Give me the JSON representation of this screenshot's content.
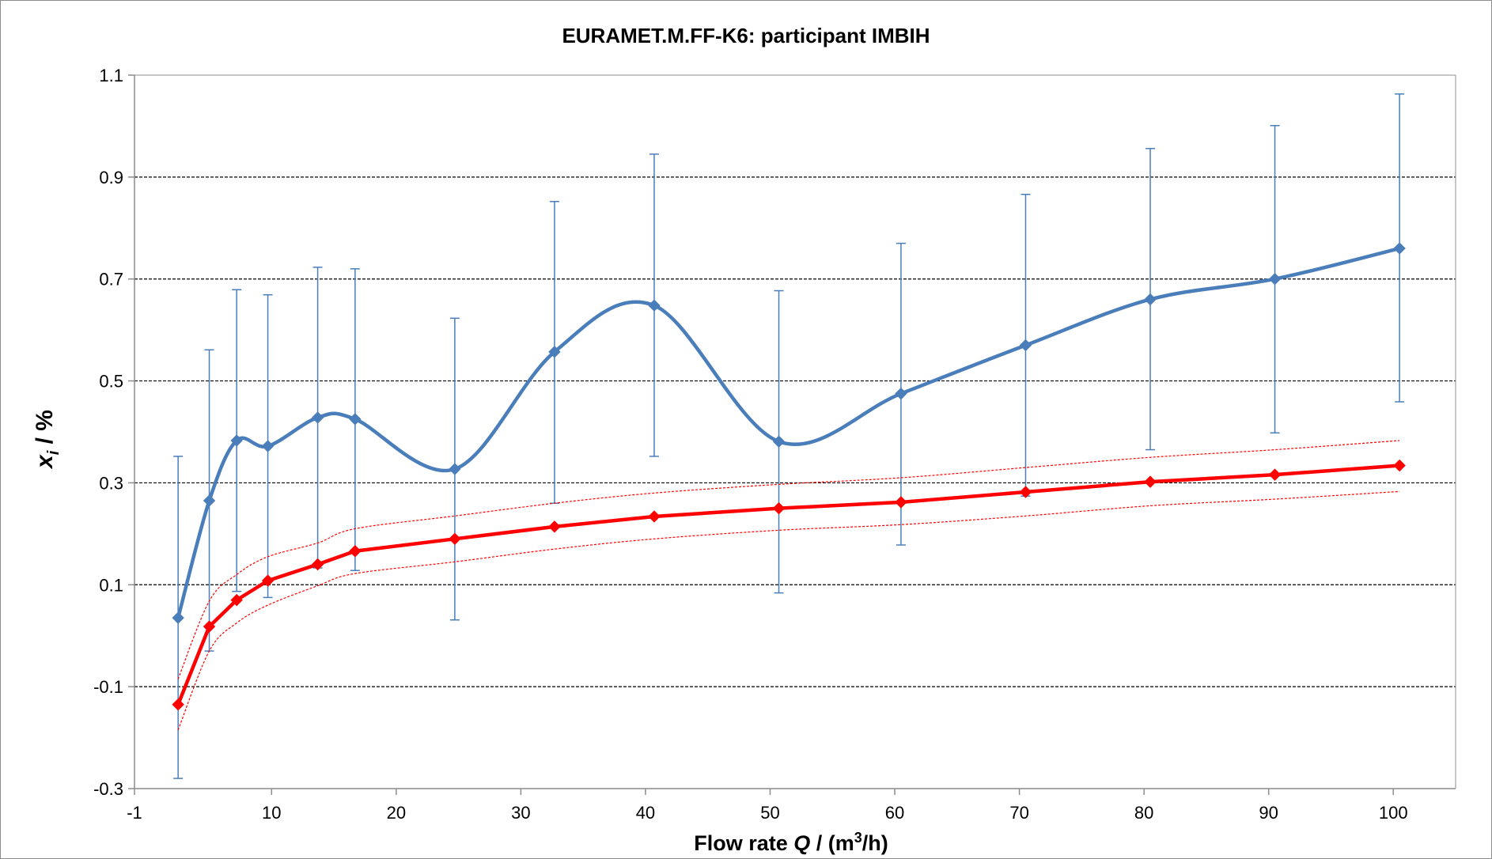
{
  "chart_data": {
    "type": "line",
    "title": "EURAMET.M.FF-K6: participant IMBIH",
    "xlabel": {
      "prefix": "Flow rate ",
      "var": "Q",
      "mid": " / (m",
      "sup": "3",
      "suffix": "/h)"
    },
    "ylabel": {
      "var": "x",
      "sub": "i",
      "suffix": " / %"
    },
    "xlim": [
      -1,
      105
    ],
    "ylim": [
      -0.3,
      1.1
    ],
    "x_ticks": [
      -1,
      10,
      20,
      30,
      40,
      50,
      60,
      70,
      80,
      90,
      100
    ],
    "y_ticks": [
      -0.3,
      -0.1,
      0.1,
      0.3,
      0.5,
      0.7,
      0.9,
      1.1
    ],
    "y_grid": [
      -0.1,
      0.1,
      0.3,
      0.5,
      0.7,
      0.9
    ],
    "x_tick_labels": [
      "-1",
      "10",
      "20",
      "30",
      "40",
      "50",
      "60",
      "70",
      "80",
      "90",
      "100"
    ],
    "y_tick_labels": [
      "-0.3",
      "-0.1",
      "0.1",
      "0.3",
      "0.5",
      "0.7",
      "0.9",
      "1.1"
    ],
    "series": [
      {
        "color": "#4a7ebb",
        "style": "smooth-line-diamond-markers-errorbars",
        "x": [
          2.5,
          5.0,
          7.2,
          9.7,
          13.7,
          16.7,
          24.7,
          32.7,
          40.7,
          50.7,
          60.5,
          70.5,
          80.5,
          90.5,
          100.5
        ],
        "y": [
          0.035,
          0.265,
          0.383,
          0.372,
          0.428,
          0.425,
          0.327,
          0.557,
          0.648,
          0.381,
          0.475,
          0.57,
          0.66,
          0.7,
          0.76
        ],
        "y_err_low": [
          -0.28,
          -0.03,
          0.087,
          0.075,
          0.133,
          0.128,
          0.031,
          0.26,
          0.352,
          0.084,
          0.178,
          0.274,
          0.365,
          0.398,
          0.459
        ],
        "y_err_high": [
          0.352,
          0.561,
          0.679,
          0.669,
          0.723,
          0.72,
          0.623,
          0.852,
          0.945,
          0.677,
          0.77,
          0.866,
          0.956,
          1.001,
          1.063
        ]
      },
      {
        "color": "#ff0000",
        "style": "line-diamond-markers",
        "x": [
          2.5,
          5.0,
          7.2,
          9.7,
          13.7,
          16.7,
          24.7,
          32.7,
          40.7,
          50.7,
          60.5,
          70.5,
          80.5,
          90.5,
          100.5
        ],
        "y": [
          -0.135,
          0.018,
          0.07,
          0.108,
          0.14,
          0.166,
          0.19,
          0.214,
          0.234,
          0.25,
          0.262,
          0.282,
          0.302,
          0.316,
          0.334
        ]
      },
      {
        "color": "#ff0000",
        "style": "dotted-upper-band",
        "x": [
          2.5,
          5.0,
          7.2,
          9.7,
          13.7,
          16.7,
          24.7,
          32.7,
          40.7,
          50.7,
          60.5,
          70.5,
          80.5,
          90.5,
          100.5
        ],
        "y": [
          -0.085,
          0.068,
          0.12,
          0.155,
          0.182,
          0.21,
          0.235,
          0.26,
          0.28,
          0.297,
          0.31,
          0.33,
          0.35,
          0.365,
          0.383
        ]
      },
      {
        "color": "#ff0000",
        "style": "dotted-lower-band",
        "x": [
          2.5,
          5.0,
          7.2,
          9.7,
          13.7,
          16.7,
          24.7,
          32.7,
          40.7,
          50.7,
          60.5,
          70.5,
          80.5,
          90.5,
          100.5
        ],
        "y": [
          -0.185,
          -0.03,
          0.025,
          0.06,
          0.098,
          0.122,
          0.145,
          0.17,
          0.19,
          0.207,
          0.218,
          0.235,
          0.255,
          0.268,
          0.283
        ]
      }
    ]
  }
}
